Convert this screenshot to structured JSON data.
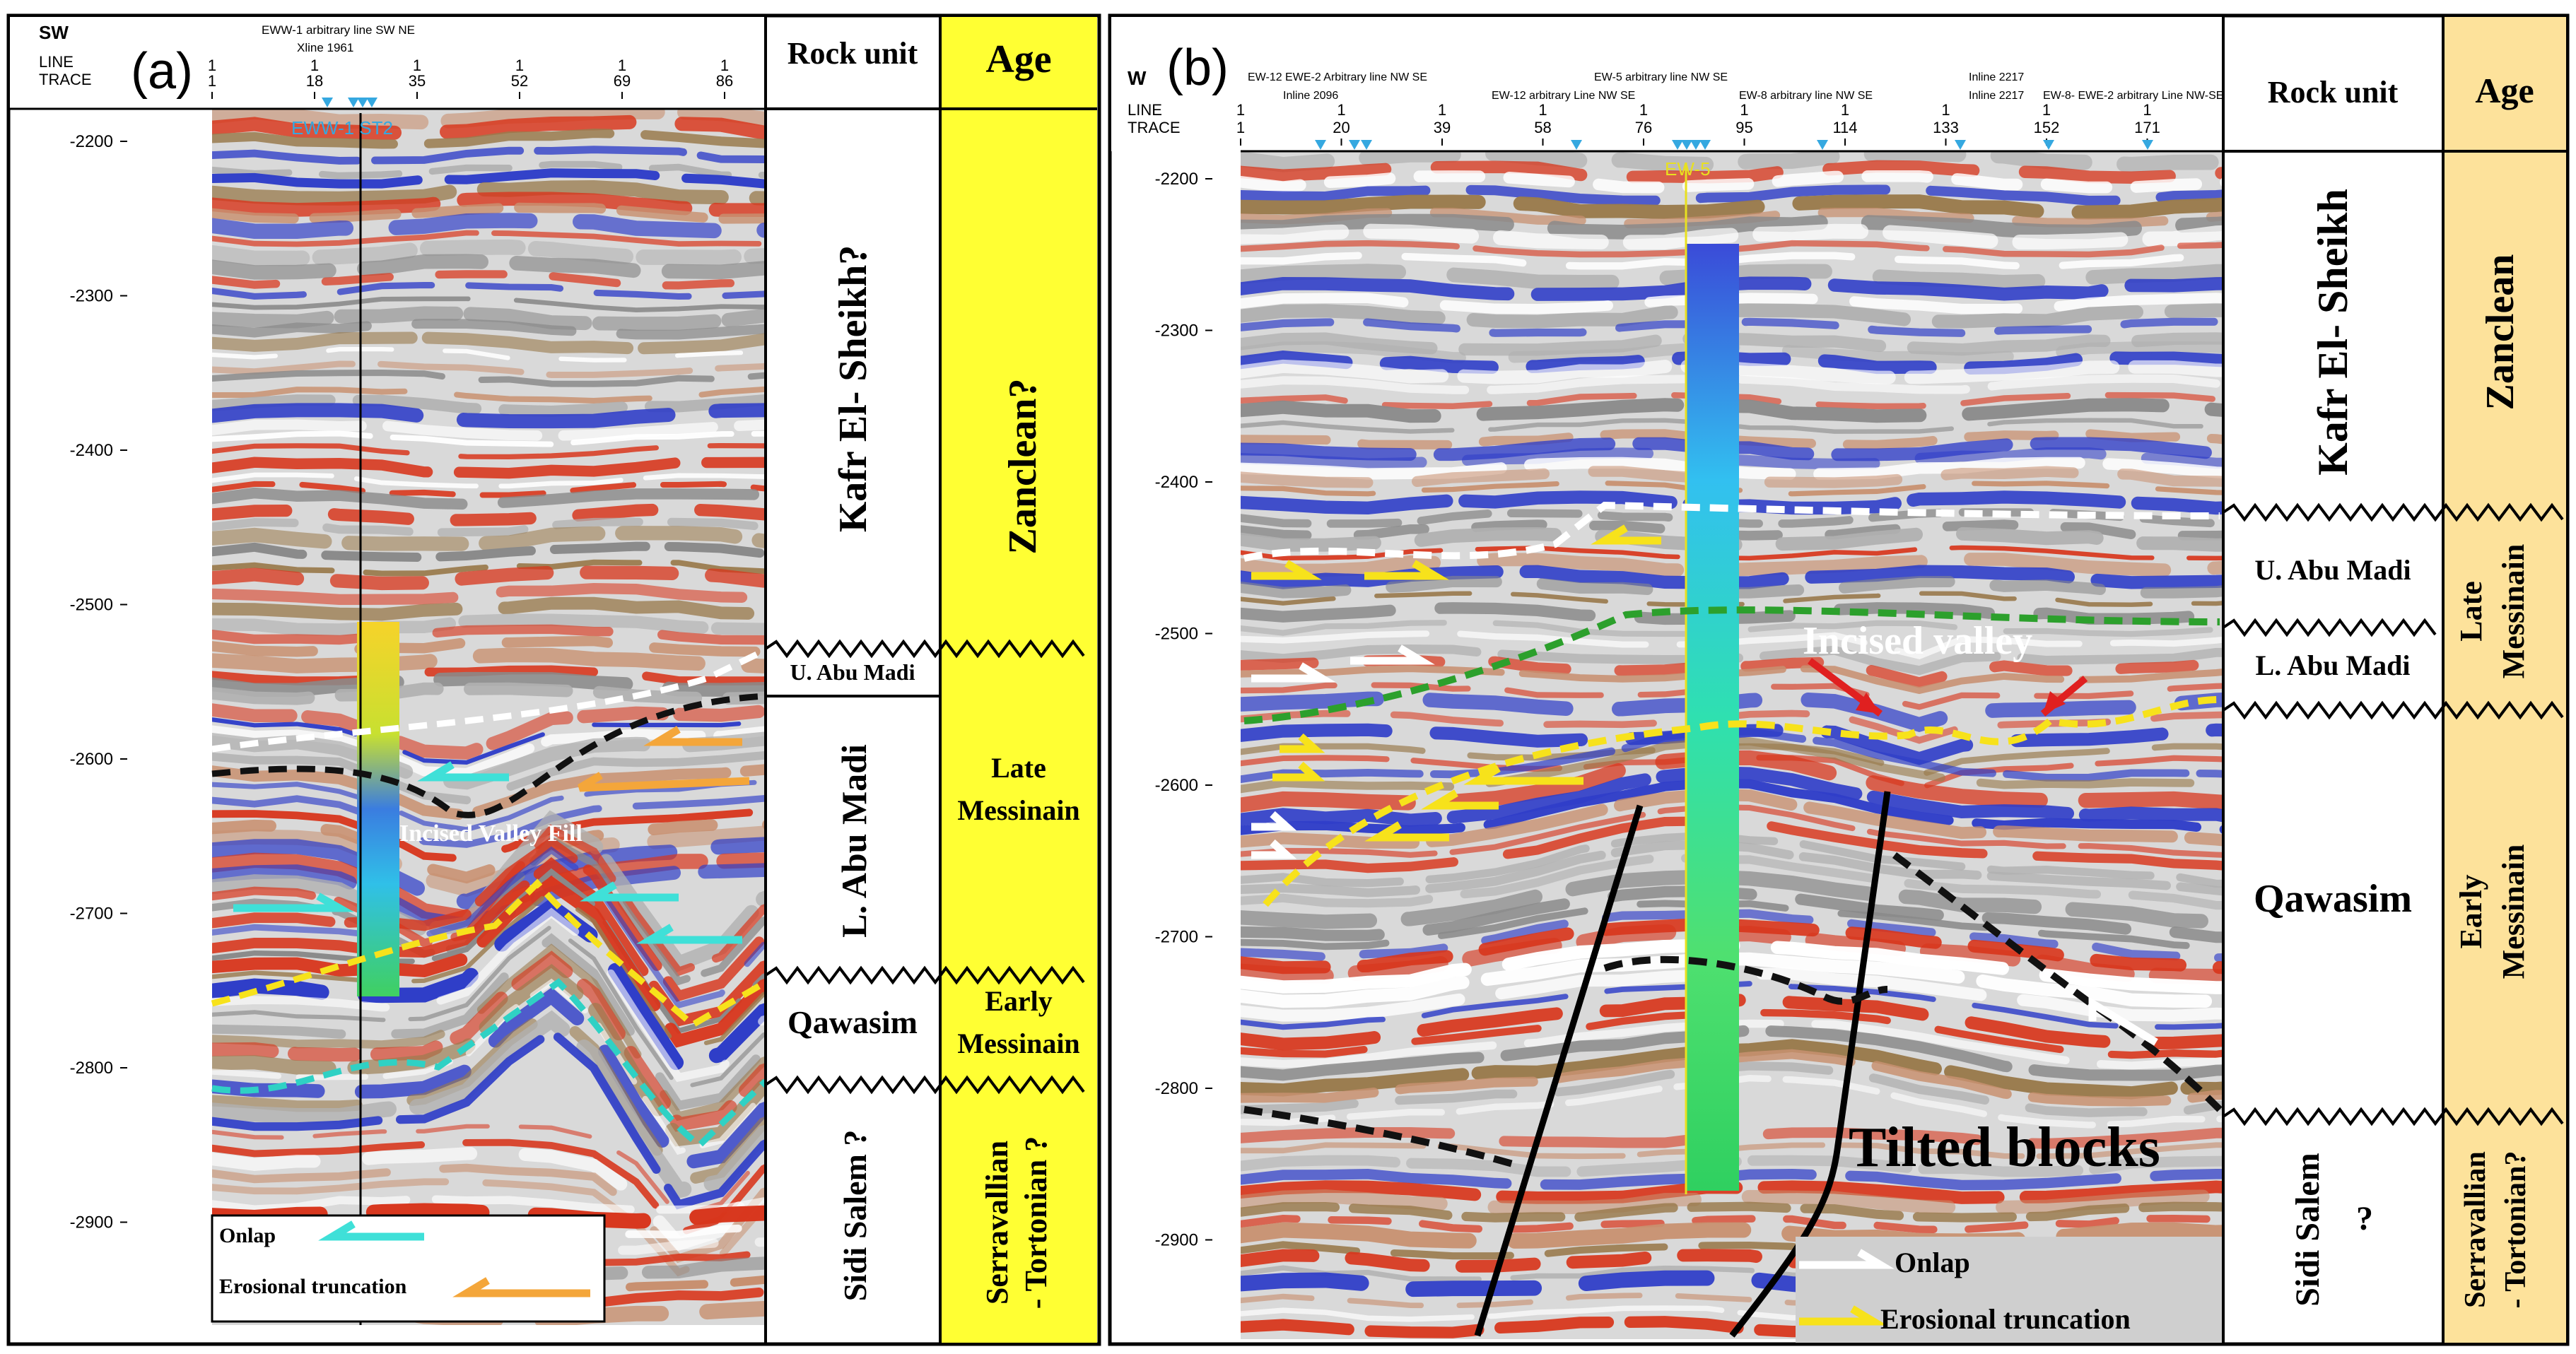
{
  "panel_a": {
    "label": "(a)",
    "side_label": "SW",
    "header_line": "EWW-1 arbitrary line SW NE",
    "header_sub": "Xline 1961",
    "line_label": "LINE",
    "trace_label": "TRACE",
    "line_values": [
      "1",
      "1",
      "1",
      "1",
      "1",
      "1"
    ],
    "trace_values": [
      "1",
      "18",
      "35",
      "52",
      "69",
      "86"
    ],
    "well_name": "EWW-1 ST2",
    "depth_ticks": [
      "-2200",
      "-2300",
      "-2400",
      "-2500",
      "-2600",
      "-2700",
      "-2800",
      "-2900"
    ],
    "rock_unit_header": "Rock unit",
    "age_header": "Age",
    "rock_units": [
      "Kafr El- Sheikh?",
      "U. Abu Madi",
      "L. Abu Madi",
      "Qawasim",
      "Sidi Salem ?"
    ],
    "ages": [
      "Zanclean?",
      "Late Messinain",
      "Early Messinain",
      "Serravallian - Tortonian ?"
    ],
    "annotation": "Incised Valley Fill",
    "legend": {
      "onlap": "Onlap",
      "erosional": "Erosional truncation"
    }
  },
  "panel_b": {
    "label": "(b)",
    "side_label": "W",
    "header_labels": [
      "EW-12 EWE-2 Arbitrary line NW SE",
      "Inline 2096",
      "EW-5 arbitrary line NW SE",
      "EW-12 arbitrary Line NW SE",
      "EW-8 arbitrary line NW SE",
      "Inline 2217",
      "Inline 2217",
      "EW-8- EWE-2 arbitrary Line NW-SE"
    ],
    "line_label": "LINE",
    "trace_label": "TRACE",
    "line_values": [
      "1",
      "1",
      "1",
      "1",
      "1",
      "1",
      "1",
      "1",
      "1",
      "1"
    ],
    "trace_values": [
      "1",
      "20",
      "39",
      "58",
      "76",
      "95",
      "114",
      "133",
      "152",
      "171"
    ],
    "well_name": "EW-5",
    "depth_ticks": [
      "-2200",
      "-2300",
      "-2400",
      "-2500",
      "-2600",
      "-2700",
      "-2800",
      "-2900"
    ],
    "rock_unit_header": "Rock unit",
    "age_header": "Age",
    "rock_units": [
      "Kafr El- Sheikh",
      "U. Abu Madi",
      "L. Abu Madi",
      "Qawasim",
      "Sidi Salem ?"
    ],
    "ages": [
      "Zanclean",
      "Late Messinain",
      "Early Messinain",
      "Serravallian - Tortonian?"
    ],
    "annotation_valley": "Incised valley",
    "annotation_blocks": "Tilted blocks",
    "legend": {
      "onlap": "Onlap",
      "erosional": "Erosional truncation"
    }
  },
  "colors": {
    "age_yellow": "#ffff33",
    "age_beige": "#fde29b",
    "seismic_red": "#d8361c",
    "seismic_blue": "#2f3ec8",
    "seismic_brown": "#9a7b4e",
    "onlap_cyan": "#3fe0d8",
    "erosion_orange": "#f4a63a",
    "horizon_white": "#ffffff",
    "horizon_black": "#111111",
    "horizon_yellow": "#f7e21b",
    "horizon_green": "#2ca02c",
    "horizon_cyan": "#2fd1c4",
    "valley_red": "#e02020"
  }
}
